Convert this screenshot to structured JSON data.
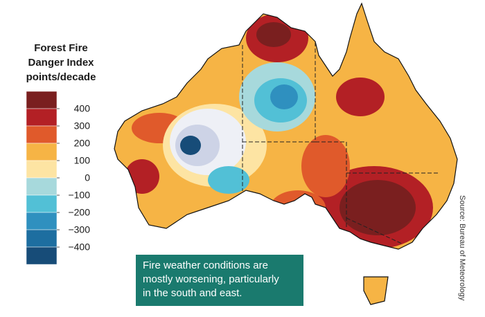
{
  "legend": {
    "title_lines": [
      "Forest Fire",
      "Danger Index",
      "points/decade"
    ],
    "colors": [
      "#7a1f1f",
      "#b32025",
      "#e05a2b",
      "#f6b445",
      "#fde4a3",
      "#a7d9dc",
      "#52c0d6",
      "#2f90bf",
      "#1d6ea0",
      "#174c78"
    ],
    "ticks": [
      400,
      300,
      200,
      100,
      0,
      {
        "value": -100,
        "label": "−100"
      },
      {
        "value": -200,
        "label": "−200"
      },
      {
        "value": -300,
        "label": "−300"
      },
      {
        "value": -400,
        "label": "−400"
      }
    ]
  },
  "callout": {
    "lines": [
      "Fire weather conditions are",
      "mostly worsening, particularly",
      "in the south and east."
    ]
  },
  "source": "Source: Bureau of Meteorology"
}
